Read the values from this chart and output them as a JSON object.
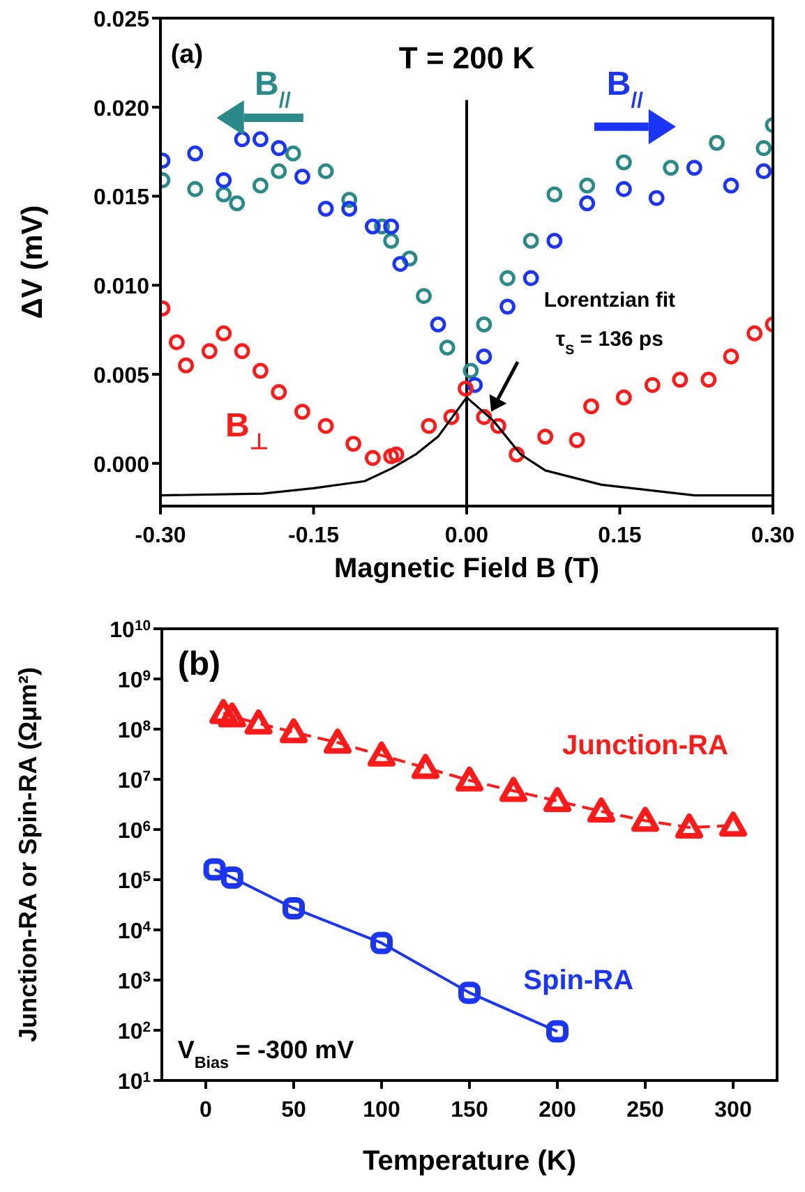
{
  "chart_data": [
    {
      "type": "scatter",
      "title": "T = 200 K",
      "xlabel": "Magnetic Field B (T)",
      "ylabel": "ΔV (mV)",
      "xlim": [
        -0.3,
        0.3
      ],
      "xticks": [
        {
          "value": -0.3,
          "label": "-0.30"
        },
        {
          "value": -0.15,
          "label": "-0.15"
        },
        {
          "value": 0,
          "label": "0.00"
        },
        {
          "value": 0.15,
          "label": "0.15"
        },
        {
          "value": 0.3,
          "label": "0.30"
        }
      ],
      "ylim": [
        -0.0024,
        0.025
      ],
      "yticks": [
        {
          "value": 0,
          "label": "0.000"
        },
        {
          "value": 0.005,
          "label": "0.005"
        },
        {
          "value": 0.01,
          "label": "0.010"
        },
        {
          "value": 0.015,
          "label": "0.015"
        },
        {
          "value": 0.02,
          "label": "0.020"
        },
        {
          "value": 0.025,
          "label": "0.025"
        }
      ],
      "marker": "circle",
      "series": [
        {
          "name": "B$_{//}$",
          "color": "#2a8a8a",
          "x": [
            -0.298,
            -0.266,
            -0.238,
            -0.225,
            -0.202,
            -0.184,
            -0.17,
            -0.138,
            -0.115,
            -0.083,
            -0.074,
            -0.056,
            -0.042,
            -0.019,
            0.004,
            0.017,
            0.04,
            0.063,
            0.086,
            0.118,
            0.154,
            0.2,
            0.245,
            0.291,
            0.3
          ],
          "values": [
            0.0159,
            0.0154,
            0.0151,
            0.0146,
            0.0156,
            0.0164,
            0.0174,
            0.0164,
            0.0148,
            0.0133,
            0.0125,
            0.0115,
            0.0094,
            0.0065,
            0.0052,
            0.0078,
            0.0104,
            0.0125,
            0.0151,
            0.0156,
            0.0169,
            0.0166,
            0.018,
            0.0177,
            0.019
          ]
        },
        {
          "name": "B$_{//}$",
          "color": "#1a35f5",
          "x": [
            -0.298,
            -0.266,
            -0.238,
            -0.22,
            -0.202,
            -0.184,
            -0.161,
            -0.138,
            -0.115,
            -0.092,
            -0.074,
            -0.065,
            -0.028,
            0.008,
            0.017,
            0.04,
            0.063,
            0.086,
            0.118,
            0.154,
            0.186,
            0.223,
            0.259,
            0.291
          ],
          "values": [
            0.017,
            0.0174,
            0.0159,
            0.0182,
            0.0182,
            0.0177,
            0.0161,
            0.0143,
            0.0143,
            0.0133,
            0.0133,
            0.0112,
            0.0078,
            0.0044,
            0.006,
            0.0088,
            0.0104,
            0.0125,
            0.0146,
            0.0154,
            0.0149,
            0.0166,
            0.0156,
            0.0164
          ]
        },
        {
          "name": "B$_{⊥}$",
          "color": "#ff1a1a",
          "x": [
            -0.298,
            -0.284,
            -0.275,
            -0.252,
            -0.238,
            -0.22,
            -0.202,
            -0.184,
            -0.161,
            -0.138,
            -0.111,
            -0.092,
            -0.074,
            -0.069,
            -0.037,
            -0.015,
            -0.001,
            0.017,
            0.031,
            0.049,
            0.077,
            0.108,
            0.122,
            0.154,
            0.182,
            0.209,
            0.237,
            0.259,
            0.282,
            0.3
          ],
          "values": [
            0.0087,
            0.0068,
            0.0055,
            0.0063,
            0.0073,
            0.0063,
            0.0052,
            0.004,
            0.0029,
            0.0021,
            0.0011,
            0.0003,
            0.0004,
            0.0005,
            0.0021,
            0.0026,
            0.0042,
            0.0026,
            0.0021,
            0.0005,
            0.0015,
            0.0013,
            0.0032,
            0.0037,
            0.0044,
            0.0047,
            0.0047,
            0.006,
            0.0073,
            0.0078
          ]
        },
        {
          "type": "line",
          "marker": "none",
          "color": "#000000",
          "x": [
            -0.3,
            -0.2,
            -0.15,
            -0.1,
            -0.074,
            -0.05,
            -0.028,
            0,
            0.026,
            0.053,
            0.077,
            0.132,
            0.223,
            0.3
          ],
          "values": [
            -0.0018,
            -0.0017,
            -0.0014,
            -0.001,
            -0.0003,
            0.0005,
            0.0015,
            0.0037,
            0.0024,
            0.0005,
            -0.0004,
            -0.0012,
            -0.0018,
            -0.0018
          ]
        }
      ],
      "ref_lines": [
        {
          "axis": "x",
          "value": 0,
          "color": "#000000"
        }
      ],
      "annotations": [
        "(a)",
        "Lorentzian fit",
        "τ$_{S}$ = 136 ps"
      ]
    },
    {
      "type": "line",
      "xlabel": "Temperature (K)",
      "ylabel": "Junction-RA or Spin-RA (Ωμm²)",
      "log": "y",
      "xlim": [
        -25,
        325
      ],
      "xticks": [
        0,
        50,
        100,
        150,
        200,
        250,
        300
      ],
      "ylim": [
        10,
        10000000000
      ],
      "yticks": [
        {
          "value": 10,
          "label": "10$^{1}$"
        },
        {
          "value": 100,
          "label": "10$^{2}$"
        },
        {
          "value": 1000,
          "label": "10$^{3}$"
        },
        {
          "value": 10000,
          "label": "10$^{4}$"
        },
        {
          "value": 100000,
          "label": "10$^{5}$"
        },
        {
          "value": 1000000,
          "label": "10$^{6}$"
        },
        {
          "value": 10000000,
          "label": "10$^{7}$"
        },
        {
          "value": 100000000,
          "label": "10$^{8}$"
        },
        {
          "value": 1000000000,
          "label": "10$^{9}$"
        },
        {
          "value": 10000000000,
          "label": "10$^{10}$"
        }
      ],
      "series": [
        {
          "name": "Junction-RA",
          "color": "#ff1a1a",
          "marker": "triangle",
          "line_style": "dashed",
          "x": [
            10,
            15,
            30,
            50,
            75,
            100,
            125,
            150,
            175,
            200,
            225,
            250,
            275,
            300
          ],
          "values": [
            210000000,
            180000000,
            130000000,
            87000000,
            54000000,
            30000000,
            17000000,
            9500000,
            5900000,
            3700000,
            2300000,
            1500000,
            1100000,
            1200000
          ]
        },
        {
          "name": "Spin-RA",
          "color": "#1a35f5",
          "marker": "square",
          "line_style": "solid",
          "x": [
            5,
            15,
            50,
            100,
            150,
            200
          ],
          "values": [
            160000,
            110000,
            27000,
            5500,
            560,
            95
          ]
        }
      ],
      "annotations": [
        "(b)",
        "V$_{Bias}$ = -300 mV"
      ]
    }
  ]
}
